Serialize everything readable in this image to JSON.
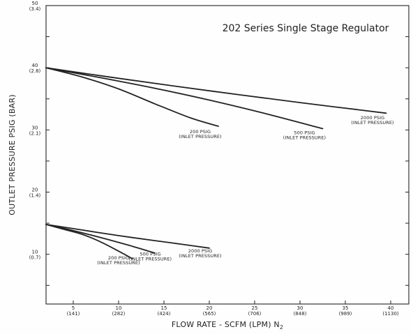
{
  "chart_data": {
    "type": "line",
    "title": "202 Series Single Stage Regulator",
    "xlabel": "FLOW RATE - SCFM (LPM) N",
    "xlabel_subscript": "2",
    "ylabel": "OUTLET PRESSURE PSIG (BAR)",
    "xlim": [
      2,
      42
    ],
    "ylim": [
      2,
      50
    ],
    "grid": false,
    "x_ticks": [
      {
        "value": 5,
        "label": "5",
        "sublabel": "(141)"
      },
      {
        "value": 10,
        "label": "10",
        "sublabel": "(282)"
      },
      {
        "value": 15,
        "label": "15",
        "sublabel": "(424)"
      },
      {
        "value": 20,
        "label": "20",
        "sublabel": "(565)"
      },
      {
        "value": 25,
        "label": "25",
        "sublabel": "(706)"
      },
      {
        "value": 30,
        "label": "30",
        "sublabel": "(848)"
      },
      {
        "value": 35,
        "label": "35",
        "sublabel": "(989)"
      },
      {
        "value": 40,
        "label": "40",
        "sublabel": "(1130)"
      }
    ],
    "y_ticks": [
      {
        "value": 10,
        "label": "10",
        "sublabel": "(0.7)"
      },
      {
        "value": 20,
        "label": "20",
        "sublabel": "(1.4)"
      },
      {
        "value": 30,
        "label": "30",
        "sublabel": "(2.1)"
      },
      {
        "value": 40,
        "label": "40",
        "sublabel": "(2.8)"
      },
      {
        "value": 50,
        "label": "50",
        "sublabel": "(3.4)"
      }
    ],
    "series": [
      {
        "name": "200 PSIG (INLET PRESSURE)",
        "label_lines": [
          "200 PSIG",
          "(INLET PRESSURE)"
        ],
        "label_at": [
          10,
          9.2
        ],
        "x": [
          2,
          4,
          6,
          8,
          10,
          11.5
        ],
        "y": [
          14.8,
          14.0,
          13.2,
          12.0,
          10.5,
          9.3
        ]
      },
      {
        "name": "500 PSIG (INLET PRESSURE)",
        "label_lines": [
          "500 PSIG",
          "(INLET PRESSURE)"
        ],
        "label_at": [
          13.5,
          9.8
        ],
        "x": [
          2,
          5,
          8,
          11,
          14
        ],
        "y": [
          14.8,
          13.8,
          12.7,
          11.5,
          10.2
        ]
      },
      {
        "name": "2000 PSIG (INLET PRESSURE)",
        "label_lines": [
          "2000 PSIG",
          "(INLET PRESSURE)"
        ],
        "label_at": [
          19,
          10.3
        ],
        "x": [
          2,
          6,
          10,
          14,
          17,
          20
        ],
        "y": [
          14.8,
          13.9,
          13.0,
          12.2,
          11.6,
          11.0
        ]
      },
      {
        "name": "200 PSIG (INLET PRESSURE)",
        "label_lines": [
          "200 PSIG",
          "(INLET PRESSURE)"
        ],
        "label_at": [
          19,
          29.5
        ],
        "x": [
          2,
          6,
          10,
          14,
          18,
          21
        ],
        "y": [
          40,
          38.5,
          36.6,
          34.2,
          31.9,
          30.6
        ]
      },
      {
        "name": "500 PSIG (INLET PRESSURE)",
        "label_lines": [
          "500 PSIG",
          "(INLET PRESSURE)"
        ],
        "label_at": [
          30.5,
          29.3
        ],
        "x": [
          2,
          8,
          14,
          20,
          26,
          32.5
        ],
        "y": [
          40,
          38.4,
          36.7,
          34.8,
          32.7,
          30.2
        ]
      },
      {
        "name": "2000 PSIG (INLET PRESSURE)",
        "label_lines": [
          "2000 PSIG",
          "(INLET PRESSURE)"
        ],
        "label_at": [
          38,
          31.7
        ],
        "x": [
          2,
          10,
          20,
          30,
          35,
          39.5
        ],
        "y": [
          40,
          38.3,
          36.3,
          34.4,
          33.5,
          32.7
        ]
      }
    ]
  }
}
